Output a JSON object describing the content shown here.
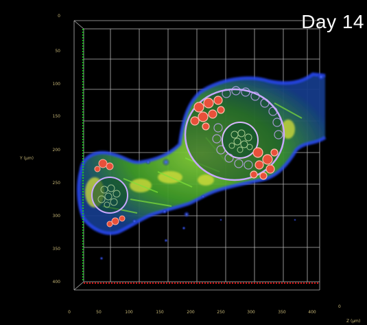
{
  "day_label": "Day 14",
  "y_axis": {
    "title": "Y (µm)",
    "ticks": [
      "0",
      "50",
      "100",
      "150",
      "200",
      "250",
      "300",
      "350",
      "400"
    ]
  },
  "x_axis": {
    "title": "Z (µm)",
    "ticks": [
      "0",
      "50",
      "100",
      "150",
      "200",
      "250",
      "300",
      "350",
      "400"
    ]
  },
  "corner_tick": "0",
  "colors": {
    "background": "#000000",
    "grid": "#d8d8d8",
    "y_axis_line": "#19c81e",
    "x_axis_line": "#e01818",
    "tick_text": "#c8b878",
    "tissue_green": "#4fbf2f",
    "tissue_yellow": "#d8e03a",
    "tissue_blue": "#1c3cff",
    "cell_red": "#e8503a",
    "cell_wall": "#c8a8ff"
  }
}
